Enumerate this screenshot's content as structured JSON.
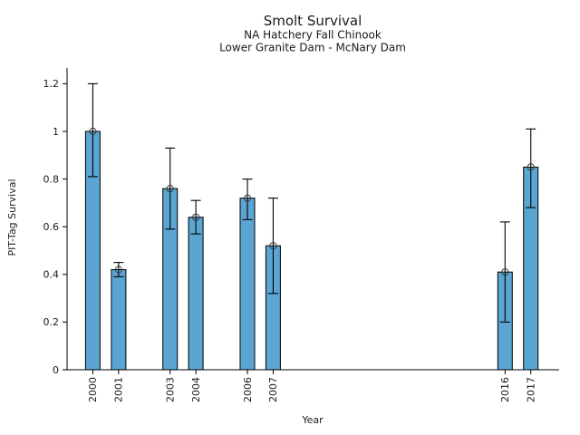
{
  "chart_data": {
    "type": "bar",
    "title": "Smolt Survival",
    "subtitle1": "NA Hatchery Fall Chinook",
    "subtitle2": "Lower Granite Dam - McNary Dam",
    "xlabel": "Year",
    "ylabel": "PIT-Tag Survival",
    "categories": [
      2000,
      2001,
      2003,
      2004,
      2006,
      2007,
      2016,
      2017
    ],
    "series": [
      {
        "name": "PIT-Tag Survival",
        "values": [
          1.0,
          0.42,
          0.76,
          0.64,
          0.72,
          0.52,
          0.41,
          0.85
        ],
        "error_low": [
          0.81,
          0.39,
          0.59,
          0.57,
          0.63,
          0.32,
          0.2,
          0.68
        ],
        "error_high": [
          1.2,
          0.45,
          0.93,
          0.71,
          0.8,
          0.72,
          0.62,
          1.01
        ]
      }
    ],
    "xlim": [
      1999,
      2018.1
    ],
    "ylim": [
      0,
      1.266
    ],
    "yticks": [
      0,
      0.2,
      0.4,
      0.6,
      0.8,
      1,
      1.2
    ],
    "ytick_labels": [
      "0",
      "0.2",
      "0.4",
      "0.6",
      "0.8",
      "1",
      "1.2"
    ],
    "xtick_labels": [
      "2000",
      "2001",
      "2003",
      "2004",
      "2006",
      "2007",
      "2016",
      "2017"
    ],
    "grid": false,
    "legend": "none",
    "marker": "open-circle",
    "colors": {
      "bar_fill": "#5aa5d2",
      "bar_edge": "#000000",
      "error_bar": "#000000",
      "marker_edge": "#3a3a3a",
      "axis": "#000000",
      "text": "#1a1a1a",
      "background": "#ffffff"
    }
  }
}
